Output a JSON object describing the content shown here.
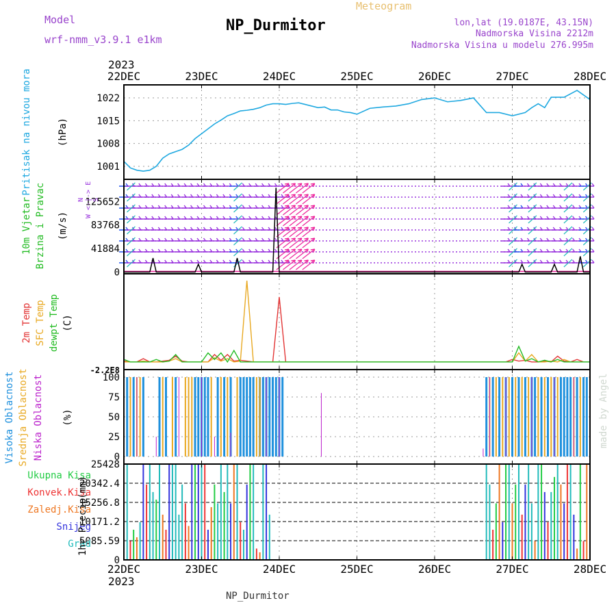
{
  "header": {
    "model_label": "Model",
    "model_name": "wrf-nmm_v3.9.1 e1km",
    "title": "NP_Durmitor",
    "subtitle": "Meteogram",
    "lonlat": "lon,lat (19.0187E, 43.15N)",
    "altitude": "Nadmorska Visina 2212m",
    "model_altitude": "Nadmorska Visina u modelu 276.995m",
    "year_top": "2023",
    "year_bottom": "2023",
    "footer": "NP_Durmitor",
    "watermark": "made by Angel"
  },
  "colors": {
    "pressure": "#1ea8e0",
    "wind_label": "#22bb22",
    "wind_line": "#000000",
    "barb": "#9933dd",
    "barb_blue": "#2255ee",
    "barb_magenta": "#ee2299",
    "temp2m": "#e23333",
    "sfc": "#e8a820",
    "dew": "#22bb22",
    "high_cloud": "#1e90dd",
    "mid_cloud": "#e8a820",
    "low_cloud": "#bb22cc",
    "total_precip": "#22cc44",
    "conv_precip": "#ee3333",
    "frozen_precip": "#ee7722",
    "snow": "#3333dd",
    "hail": "#22bbbb"
  },
  "chart_data": [
    {
      "type": "line",
      "panel": "pressure",
      "ylabel": "Pritisak na nivou mora",
      "unit": "(hPa)",
      "x_range_hours": [
        0,
        144
      ],
      "x_ticks": [
        "22DEC",
        "23DEC",
        "24DEC",
        "25DEC",
        "26DEC",
        "27DEC",
        "28DEC"
      ],
      "y_ticks": [
        1001,
        1008,
        1015,
        1022
      ],
      "ylim": [
        997,
        1026
      ],
      "x": [
        0,
        2,
        4,
        6,
        8,
        10,
        12,
        14,
        16,
        18,
        20,
        22,
        24,
        26,
        28,
        30,
        32,
        34,
        36,
        38,
        40,
        42,
        44,
        46,
        48,
        50,
        52,
        54,
        56,
        58,
        60,
        62,
        64,
        66,
        68,
        70,
        72,
        76,
        80,
        84,
        88,
        92,
        96,
        100,
        104,
        108,
        112,
        116,
        120,
        124,
        126,
        128,
        130,
        132,
        136,
        140,
        144
      ],
      "values": [
        1002.5,
        1000.5,
        999.8,
        999.5,
        999.8,
        1001,
        1003.5,
        1004.8,
        1005.5,
        1006.2,
        1007.5,
        1009.5,
        1011,
        1012.5,
        1014,
        1015.2,
        1016.5,
        1017.2,
        1018,
        1018.2,
        1018.5,
        1019,
        1019.8,
        1020.2,
        1020.2,
        1020,
        1020.3,
        1020.5,
        1020,
        1019.5,
        1019,
        1019.2,
        1018.3,
        1018.3,
        1017.7,
        1017.5,
        1017,
        1018.8,
        1019.2,
        1019.5,
        1020.2,
        1021.5,
        1022,
        1020.8,
        1021.2,
        1022,
        1017.5,
        1017.5,
        1016.5,
        1017.5,
        1019,
        1020.2,
        1019,
        1022.2,
        1022.2,
        1024.3,
        1021.5
      ],
      "grid": true
    },
    {
      "type": "line",
      "panel": "wind",
      "ylabel": "10m Vjetar",
      "ylabel2": "Brzina i Pravac",
      "unit": "(m/s)",
      "compass": "N\nW <-|-> E\nS",
      "y_ticks": [
        0,
        41884,
        83768,
        125652
      ],
      "ylim": [
        -3000,
        165000
      ],
      "x": [
        0,
        8,
        9,
        10,
        12,
        14,
        22,
        23,
        24,
        26,
        30,
        34,
        35,
        36,
        38,
        40,
        44,
        46,
        47,
        48,
        50,
        54,
        120,
        122,
        123,
        124,
        126,
        128,
        130,
        132,
        133,
        134,
        136,
        140,
        141,
        142,
        144
      ],
      "values": [
        0,
        0,
        25000,
        0,
        0,
        0,
        0,
        14000,
        0,
        0,
        0,
        0,
        25000,
        0,
        0,
        0,
        0,
        0,
        150000,
        0,
        0,
        0,
        0,
        0,
        14000,
        0,
        0,
        0,
        0,
        0,
        14000,
        0,
        0,
        0,
        28000,
        0,
        0
      ],
      "grid": true
    },
    {
      "type": "line",
      "panel": "temperature",
      "labels": [
        "2m Temp",
        "SFC Temp",
        "dewpt Temp"
      ],
      "unit": "(C)",
      "y_tick_label": "-2.2E8",
      "series": [
        {
          "name": "2m Temp",
          "x": [
            0,
            2,
            4,
            6,
            8,
            10,
            12,
            14,
            16,
            18,
            20,
            22,
            24,
            26,
            28,
            30,
            32,
            34,
            36,
            38,
            40,
            42,
            44,
            46,
            48,
            50,
            52,
            54,
            56,
            58,
            60,
            62,
            64,
            66,
            68,
            70,
            72,
            74,
            76,
            78,
            80,
            82,
            84,
            86,
            88,
            90,
            92,
            94,
            96,
            98,
            100,
            102,
            104,
            106,
            108,
            110,
            112,
            114,
            116,
            118,
            120,
            122,
            124,
            126,
            128,
            130,
            132,
            134,
            136,
            138,
            140,
            142,
            144
          ],
          "values": [
            0.02,
            0.01,
            0.01,
            0.05,
            0.01,
            0.01,
            0.02,
            0.03,
            0.08,
            0.02,
            0.01,
            0.01,
            0.01,
            0.01,
            0.1,
            0.03,
            0.1,
            0.02,
            0.03,
            0.02,
            0.01,
            0.01,
            0.01,
            0.01,
            0.8,
            0.01,
            0.01,
            0.01,
            0.01,
            0.01,
            0.01,
            0.01,
            0.01,
            0.01,
            0.01,
            0.01,
            0.01,
            0.01,
            0.01,
            0.01,
            0.01,
            0.01,
            0.01,
            0.01,
            0.01,
            0.01,
            0.01,
            0.01,
            0.01,
            0.01,
            0.01,
            0.01,
            0.01,
            0.01,
            0.01,
            0.01,
            0.01,
            0.01,
            0.01,
            0.01,
            0.04,
            0.02,
            0.03,
            0.01,
            0.01,
            0.02,
            0.01,
            0.08,
            0.02,
            0.01,
            0.04,
            0.01,
            0.01
          ]
        },
        {
          "name": "SFC Temp",
          "x": [
            0,
            2,
            4,
            6,
            8,
            10,
            12,
            14,
            16,
            18,
            20,
            22,
            24,
            26,
            28,
            30,
            32,
            34,
            36,
            38,
            40,
            42,
            44,
            46,
            48,
            50,
            52,
            54,
            56,
            58,
            60,
            62,
            64,
            66,
            68,
            70,
            72,
            74,
            76,
            78,
            80,
            82,
            84,
            86,
            88,
            90,
            92,
            94,
            96,
            98,
            100,
            102,
            104,
            106,
            108,
            110,
            112,
            114,
            116,
            118,
            120,
            122,
            124,
            126,
            128,
            130,
            132,
            134,
            136,
            138,
            140,
            142,
            144
          ],
          "values": [
            0.01,
            0.01,
            0.01,
            0.02,
            0.01,
            0.01,
            0.01,
            0.02,
            0.05,
            0.01,
            0.01,
            0.01,
            0.01,
            0.01,
            0.06,
            0.02,
            0.05,
            0.01,
            0.02,
            1.0,
            0.01,
            0.01,
            0.01,
            0.01,
            0.01,
            0.01,
            0.01,
            0.01,
            0.01,
            0.01,
            0.01,
            0.01,
            0.01,
            0.01,
            0.01,
            0.01,
            0.01,
            0.01,
            0.01,
            0.01,
            0.01,
            0.01,
            0.01,
            0.01,
            0.01,
            0.01,
            0.01,
            0.01,
            0.01,
            0.01,
            0.01,
            0.01,
            0.01,
            0.01,
            0.01,
            0.01,
            0.01,
            0.01,
            0.01,
            0.01,
            0.01,
            0.12,
            0.02,
            0.1,
            0.01,
            0.01,
            0.02,
            0.01,
            0.04,
            0.01,
            0.01,
            0.01,
            0.01
          ]
        },
        {
          "name": "dewpt Temp",
          "x": [
            0,
            2,
            4,
            6,
            8,
            10,
            12,
            14,
            16,
            18,
            20,
            22,
            24,
            26,
            28,
            30,
            32,
            34,
            36,
            38,
            40,
            42,
            44,
            46,
            48,
            50,
            52,
            54,
            56,
            58,
            60,
            62,
            64,
            66,
            68,
            70,
            72,
            74,
            76,
            78,
            80,
            82,
            84,
            86,
            88,
            90,
            92,
            94,
            96,
            98,
            100,
            102,
            104,
            106,
            108,
            110,
            112,
            114,
            116,
            118,
            120,
            122,
            124,
            126,
            128,
            130,
            132,
            134,
            136,
            138,
            140,
            142,
            144
          ],
          "values": [
            0.04,
            0.01,
            0.01,
            0.01,
            0.01,
            0.04,
            0.01,
            0.02,
            0.1,
            0.01,
            0.01,
            0.01,
            0.01,
            0.12,
            0.04,
            0.12,
            0.01,
            0.15,
            0.01,
            0.01,
            0.01,
            0.01,
            0.01,
            0.01,
            0.01,
            0.01,
            0.01,
            0.01,
            0.01,
            0.01,
            0.01,
            0.01,
            0.01,
            0.01,
            0.01,
            0.01,
            0.01,
            0.01,
            0.01,
            0.01,
            0.01,
            0.01,
            0.01,
            0.01,
            0.01,
            0.01,
            0.01,
            0.01,
            0.01,
            0.01,
            0.01,
            0.01,
            0.01,
            0.01,
            0.01,
            0.01,
            0.01,
            0.01,
            0.01,
            0.01,
            0.01,
            0.2,
            0.02,
            0.05,
            0.01,
            0.03,
            0.01,
            0.04,
            0.01,
            0.01,
            0.01,
            0.01,
            0.01
          ]
        }
      ]
    },
    {
      "type": "bar",
      "panel": "cloud",
      "labels": [
        "Visoka Oblacnost",
        "Srednja Oblacnost",
        "Niska Oblacnost"
      ],
      "unit": "(%)",
      "y_ticks": [
        0,
        25,
        50,
        75,
        100
      ],
      "ylim": [
        0,
        100
      ],
      "series": [
        {
          "name": "Visoka Oblacnost",
          "x": [
            1,
            3,
            6,
            11,
            13,
            16,
            22,
            23,
            24,
            25,
            26,
            29,
            31,
            33,
            36,
            37,
            38,
            39,
            40,
            42,
            43,
            44,
            45,
            46,
            47,
            48,
            49,
            112,
            114,
            116,
            118,
            120,
            122,
            124,
            126,
            127,
            129,
            131,
            133,
            135,
            136,
            137,
            138,
            140,
            142,
            143
          ],
          "values": [
            100,
            100,
            100,
            100,
            100,
            100,
            100,
            100,
            100,
            100,
            100,
            100,
            100,
            100,
            100,
            100,
            100,
            100,
            100,
            100,
            100,
            100,
            100,
            100,
            100,
            100,
            100,
            100,
            100,
            100,
            100,
            100,
            100,
            100,
            100,
            100,
            100,
            100,
            100,
            100,
            100,
            100,
            100,
            100,
            100,
            100
          ]
        },
        {
          "name": "Srednja Oblacnost",
          "x": [
            2,
            4,
            5,
            12,
            15,
            19,
            20,
            21,
            27,
            30,
            32,
            35,
            41,
            42,
            113,
            115,
            117,
            119,
            121,
            123,
            125,
            128,
            130,
            132,
            134,
            139,
            141
          ],
          "values": [
            100,
            100,
            100,
            100,
            100,
            100,
            100,
            100,
            100,
            100,
            100,
            100,
            100,
            100,
            100,
            100,
            100,
            100,
            100,
            100,
            100,
            100,
            100,
            100,
            100,
            100,
            100
          ]
        },
        {
          "name": "Niska Oblacnost",
          "x": [
            4,
            10,
            17,
            24,
            28,
            33,
            44,
            48,
            61,
            111,
            113,
            118,
            126,
            133,
            139
          ],
          "values": [
            100,
            25,
            100,
            100,
            25,
            30,
            100,
            100,
            80,
            10,
            100,
            100,
            100,
            100,
            100
          ]
        }
      ]
    },
    {
      "type": "bar",
      "panel": "precipitation",
      "labels": [
        "Ukupna Kisa",
        "Konvek.Kisa",
        "Zaledj.Kisa",
        "Snijeg",
        "Grad"
      ],
      "unit": "(mm)",
      "ylabel": "1hr Precip",
      "y_ticks": [
        0,
        5085.59,
        10171.2,
        15256.8,
        20342.4,
        25428
      ],
      "ylim": [
        0,
        25428
      ],
      "series": [
        {
          "name": "Ukupna Kisa",
          "x": [
            3,
            10,
            22,
            28,
            31,
            39,
            115,
            118,
            121,
            129,
            133,
            141
          ],
          "values": [
            8000,
            16000,
            25428,
            20000,
            18000,
            25428,
            15000,
            25428,
            20000,
            25428,
            22000,
            25428
          ]
        },
        {
          "name": "Konvek.Kisa",
          "x": [
            2,
            7,
            13,
            19,
            25,
            36,
            41,
            114,
            123,
            131,
            137,
            142
          ],
          "values": [
            5000,
            20000,
            8000,
            15000,
            25428,
            10000,
            3000,
            8000,
            12000,
            10000,
            25428,
            5000
          ]
        },
        {
          "name": "Zaledj.Kisa",
          "x": [
            4,
            12,
            20,
            27,
            34,
            42,
            116,
            120,
            127,
            135,
            140,
            143
          ],
          "values": [
            6000,
            12000,
            9000,
            14000,
            25428,
            2000,
            25428,
            15000,
            5000,
            20000,
            3000,
            25428
          ]
        },
        {
          "name": "Snijeg",
          "x": [
            6,
            14,
            21,
            23,
            26,
            33,
            38,
            44,
            117,
            124,
            130,
            136,
            139
          ],
          "values": [
            25428,
            25428,
            25428,
            25428,
            8000,
            15000,
            20000,
            25428,
            10000,
            20000,
            18000,
            15000,
            12000
          ]
        },
        {
          "name": "Grad",
          "x": [
            1,
            5,
            8,
            9,
            11,
            15,
            16,
            17,
            18,
            24,
            29,
            30,
            32,
            35,
            37,
            40,
            43,
            45,
            112,
            113,
            119,
            122,
            125,
            126,
            128,
            132,
            134,
            138,
            144
          ],
          "values": [
            25428,
            10000,
            25428,
            18000,
            25428,
            25428,
            25428,
            12000,
            20000,
            25428,
            15000,
            25428,
            25428,
            25428,
            8000,
            25428,
            25428,
            12000,
            25428,
            20000,
            25428,
            25428,
            25428,
            15000,
            25428,
            18000,
            25428,
            25428,
            25428
          ]
        }
      ]
    }
  ]
}
